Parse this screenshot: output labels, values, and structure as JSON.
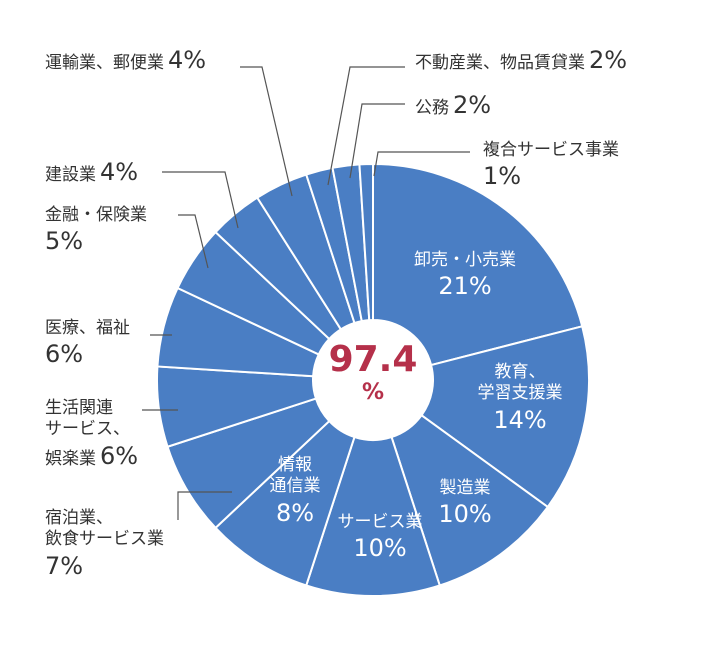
{
  "chart_data": {
    "type": "pie",
    "categories": [
      "卸売・小売業",
      "教育、\n学習支援業",
      "製造業",
      "サービス業",
      "情報\n通信業",
      "宿泊業、\n飲食サービス業",
      "生活関連\nサービス、\n娯楽業",
      "医療、福祉",
      "金融・保険業",
      "建設業",
      "運輸業、郵便業",
      "不動産業、物品賃貸業",
      "公務",
      "複合サービス事業"
    ],
    "values": [
      21,
      14,
      10,
      10,
      8,
      7,
      6,
      6,
      5,
      4,
      4,
      2,
      2,
      1
    ],
    "value_labels": [
      "21%",
      "14%",
      "10%",
      "10%",
      "8%",
      "7%",
      "6%",
      "6%",
      "5%",
      "4%",
      "4%",
      "2%",
      "2%",
      "1%"
    ],
    "color": "#4a7ec4",
    "center_label": "97.4",
    "center_unit": "%"
  }
}
